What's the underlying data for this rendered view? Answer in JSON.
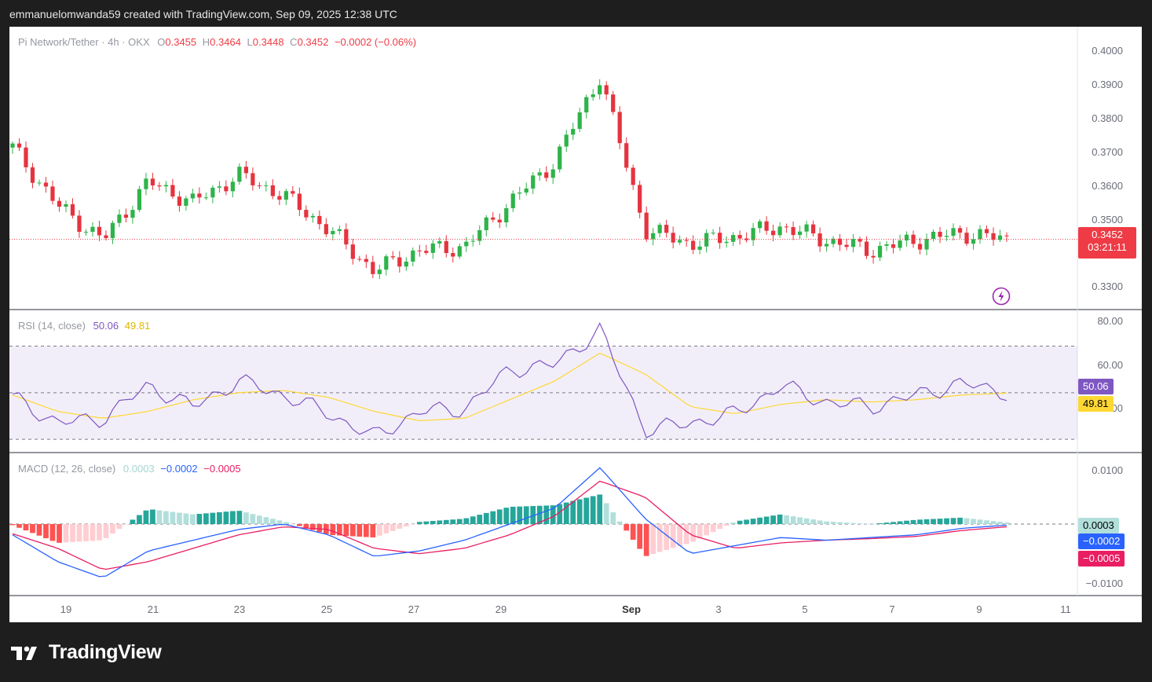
{
  "header": {
    "caption": "emmanuelomwanda59 created with TradingView.com, Sep 09, 2025 12:38 UTC"
  },
  "logo": {
    "text": "TradingView",
    "icon": "tradingview-logo-icon"
  },
  "legend": {
    "symbol": "Pi Network/Tether · 4h · OKX",
    "o_label": "O",
    "o_value": "0.3455",
    "h_label": "H",
    "h_value": "0.3464",
    "l_label": "L",
    "l_value": "0.3448",
    "c_label": "C",
    "c_value": "0.3452",
    "change": "−0.0002 (−0.06%)"
  },
  "rsi_legend": {
    "label": "RSI (14, close)",
    "rsi": "50.06",
    "ma": "49.81"
  },
  "macd_legend": {
    "label": "MACD (12, 26, close)",
    "hist": "0.0003",
    "macd": "−0.0002",
    "signal": "−0.0005"
  },
  "price_axis": [
    "0.4000",
    "0.3900",
    "0.3800",
    "0.3700",
    "0.3600",
    "0.3500",
    "0.3300"
  ],
  "rsi_axis": [
    "80.00",
    "60.00",
    "40.00"
  ],
  "macd_axis": [
    "0.0100",
    "−0.0100"
  ],
  "badges": {
    "price": "0.3452",
    "countdown": "03:21:11",
    "rsi": "50.06",
    "rsi_ma": "49.81",
    "hist": "0.0003",
    "macd": "−0.0002",
    "signal": "−0.0005"
  },
  "x_axis": [
    "19",
    "21",
    "23",
    "25",
    "27",
    "29",
    "Sep",
    "3",
    "5",
    "7",
    "9",
    "11"
  ],
  "colors": {
    "up": "#26a69a",
    "down": "#ef5350",
    "up_candle": "#2fb34a",
    "down_candle": "#e5343f",
    "rsi_line": "#7e57c2",
    "rsi_ma": "#fdd835",
    "macd_line": "#2962ff",
    "signal_line": "#e91e63",
    "price_badge": "#ef3b45"
  },
  "chart_data": [
    {
      "type": "candlestick",
      "title": "Pi Network/Tether · 4h · OKX",
      "x": [
        "Aug 18",
        "Aug 19",
        "Aug 20",
        "Aug 21",
        "Aug 22",
        "Aug 23",
        "Aug 24",
        "Aug 25",
        "Aug 26",
        "Aug 27",
        "Aug 28",
        "Aug 29",
        "Aug 30",
        "Aug 31",
        "Sep 1",
        "Sep 2",
        "Sep 3",
        "Sep 4",
        "Sep 5",
        "Sep 6",
        "Sep 7",
        "Sep 8",
        "Sep 9"
      ],
      "close": [
        0.372,
        0.355,
        0.345,
        0.362,
        0.356,
        0.364,
        0.358,
        0.348,
        0.336,
        0.342,
        0.343,
        0.356,
        0.368,
        0.393,
        0.348,
        0.344,
        0.346,
        0.349,
        0.345,
        0.342,
        0.345,
        0.347,
        0.3452
      ],
      "ylim": [
        0.327,
        0.405
      ],
      "last_price": 0.3452
    },
    {
      "type": "line",
      "title": "RSI (14, close)",
      "series": [
        {
          "name": "RSI",
          "values": [
            48,
            37,
            39,
            53,
            44,
            55,
            49,
            41,
            31,
            42,
            43,
            60,
            62,
            77,
            34,
            37,
            41,
            53,
            46,
            44,
            49,
            54,
            50.06
          ]
        },
        {
          "name": "RSI-based MA",
          "values": [
            49,
            42,
            39,
            42,
            47,
            50,
            51,
            48,
            42,
            38,
            39,
            47,
            55,
            67,
            58,
            44,
            41,
            45,
            47,
            46,
            47,
            49,
            49.81
          ]
        }
      ],
      "ylim": [
        25,
        85
      ],
      "bands": [
        70,
        50,
        30
      ]
    },
    {
      "type": "bar",
      "title": "MACD (12, 26, close)",
      "series": [
        {
          "name": "Histogram",
          "values": [
            -0.0002,
            -0.0035,
            -0.003,
            0.0028,
            0.0018,
            0.0025,
            0.0005,
            -0.002,
            -0.0025,
            0.0004,
            0.001,
            0.0032,
            0.0035,
            0.0055,
            -0.006,
            -0.0035,
            0.0005,
            0.0018,
            0.0005,
            0.0,
            0.0008,
            0.0012,
            0.0003
          ]
        },
        {
          "name": "MACD",
          "values": [
            -0.002,
            -0.007,
            -0.01,
            -0.005,
            -0.003,
            -0.001,
            0.0,
            -0.002,
            -0.006,
            -0.005,
            -0.003,
            0.0,
            0.003,
            0.0105,
            0.001,
            -0.0055,
            -0.004,
            -0.0025,
            -0.003,
            -0.0025,
            -0.002,
            -0.0008,
            -0.0002
          ]
        },
        {
          "name": "Signal",
          "values": [
            -0.0018,
            -0.0045,
            -0.0085,
            -0.007,
            -0.0045,
            -0.002,
            -0.0005,
            -0.001,
            -0.0045,
            -0.0055,
            -0.0045,
            -0.002,
            0.0015,
            0.008,
            0.005,
            -0.002,
            -0.0045,
            -0.0035,
            -0.003,
            -0.0027,
            -0.0023,
            -0.0012,
            -0.0005
          ]
        }
      ],
      "ylim": [
        -0.013,
        0.013
      ]
    }
  ]
}
